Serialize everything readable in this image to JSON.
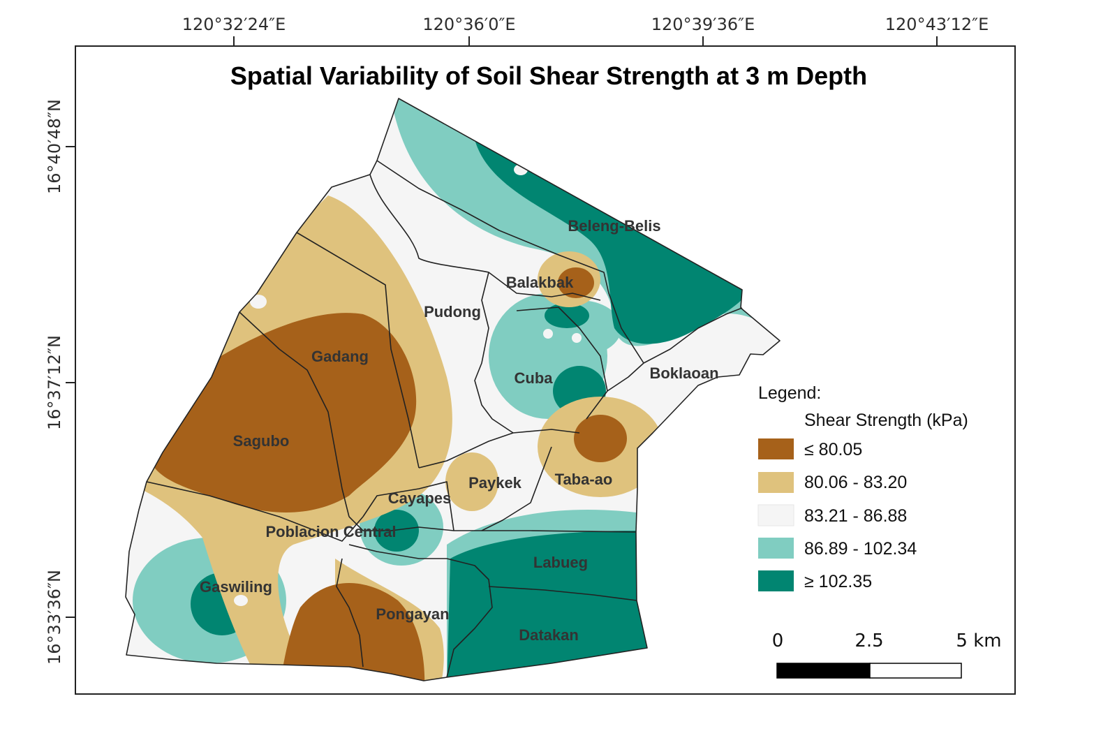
{
  "title": "Spatial Variability of Soil Shear Strength at 3 m Depth",
  "longitude_labels": [
    "120°32′24″E",
    "120°36′0″E",
    "120°39′36″E",
    "120°43′12″E"
  ],
  "latitude_labels": [
    "16°40′48″N",
    "16°37′12″N",
    "16°33′36″N"
  ],
  "barangays": [
    "Beleng-Belis",
    "Balakbak",
    "Pudong",
    "Gadang",
    "Cuba",
    "Boklaoan",
    "Sagubo",
    "Paykek",
    "Taba-ao",
    "Cayapes",
    "Poblacion Central",
    "Labueg",
    "Gaswiling",
    "Pongayan",
    "Datakan"
  ],
  "legend": {
    "heading": "Legend:",
    "subheading": "Shear Strength (kPa)",
    "classes": [
      {
        "label": "≤ 80.05",
        "color": "#a6611a"
      },
      {
        "label": "80.06 - 83.20",
        "color": "#dfc27d"
      },
      {
        "label": "83.21 - 86.88",
        "color": "#f5f5f5"
      },
      {
        "label": "86.89 - 102.34",
        "color": "#80cdc1"
      },
      {
        "label": "≥ 102.35",
        "color": "#018571"
      }
    ]
  },
  "scale_bar": {
    "labels": [
      "0",
      "2.5",
      "5 km"
    ]
  }
}
